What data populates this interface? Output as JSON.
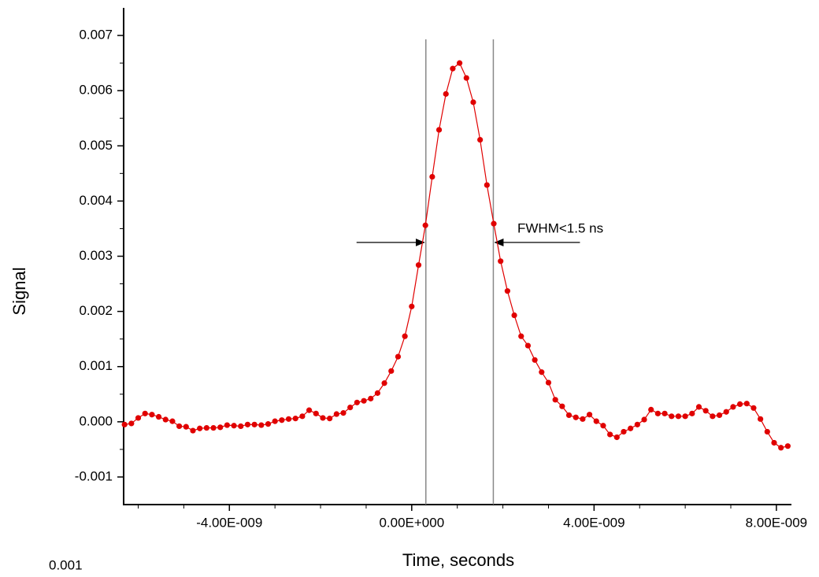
{
  "chart_data": {
    "type": "scatter-line",
    "x_label": "Time, seconds",
    "y_label": "Signal",
    "footnote": "0.001",
    "annotation": "FWHM<1.5 ns",
    "vlines": [
      3.1e-10,
      1.79e-09
    ],
    "xlim": [
      -6.32e-09,
      8.33e-09
    ],
    "ylim": [
      -0.0015,
      0.0075
    ],
    "xticks": [
      {
        "value": -4e-09,
        "label": "-4.00E-009"
      },
      {
        "value": 0,
        "label": "0.00E+000"
      },
      {
        "value": 4e-09,
        "label": "4.00E-009"
      },
      {
        "value": 8e-09,
        "label": "8.00E-009"
      }
    ],
    "xminorticks": [
      -6e-09,
      -5e-09,
      -3e-09,
      -2e-09,
      -1e-09,
      1e-09,
      2e-09,
      3e-09,
      5e-09,
      6e-09,
      7e-09
    ],
    "yticks": [
      -0.001,
      {
        "value": 0,
        "label": "0.000"
      },
      0.001,
      0.002,
      0.003,
      0.004,
      0.005,
      0.006,
      0.007
    ],
    "yminorticks": [
      -0.0005,
      0.0005,
      0.0015,
      0.0025,
      0.0035,
      0.0045,
      0.0055,
      0.0065
    ],
    "series": [
      {
        "color": "#e00000",
        "x": [
          -6.3e-09,
          -6.15e-09,
          -6e-09,
          -5.85e-09,
          -5.7e-09,
          -5.55e-09,
          -5.4e-09,
          -5.25e-09,
          -5.1e-09,
          -4.95e-09,
          -4.8e-09,
          -4.65e-09,
          -4.5e-09,
          -4.35e-09,
          -4.2e-09,
          -4.05e-09,
          -3.9e-09,
          -3.75e-09,
          -3.6e-09,
          -3.45e-09,
          -3.3e-09,
          -3.15e-09,
          -3e-09,
          -2.85e-09,
          -2.7e-09,
          -2.55e-09,
          -2.4e-09,
          -2.25e-09,
          -2.1e-09,
          -1.95e-09,
          -1.8e-09,
          -1.65e-09,
          -1.5e-09,
          -1.35e-09,
          -1.2e-09,
          -1.05e-09,
          -9e-10,
          -7.5e-10,
          -6e-10,
          -4.5e-10,
          -3e-10,
          -1.5e-10,
          0,
          1.5e-10,
          3e-10,
          4.5e-10,
          6e-10,
          7.5e-10,
          9e-10,
          1.05e-09,
          1.2e-09,
          1.35e-09,
          1.5e-09,
          1.65e-09,
          1.8e-09,
          1.95e-09,
          2.1e-09,
          2.25e-09,
          2.4e-09,
          2.55e-09,
          2.7e-09,
          2.85e-09,
          3e-09,
          3.15e-09,
          3.3e-09,
          3.45e-09,
          3.6e-09,
          3.75e-09,
          3.9e-09,
          4.05e-09,
          4.2e-09,
          4.35e-09,
          4.5e-09,
          4.65e-09,
          4.8e-09,
          4.95e-09,
          5.1e-09,
          5.25e-09,
          5.4e-09,
          5.55e-09,
          5.7e-09,
          5.85e-09,
          6e-09,
          6.15e-09,
          6.3e-09,
          6.45e-09,
          6.6e-09,
          6.75e-09,
          6.9e-09,
          7.05e-09,
          7.2e-09,
          7.35e-09,
          7.5e-09,
          7.65e-09,
          7.8e-09,
          7.95e-09,
          8.1e-09,
          8.25e-09
        ],
        "values": [
          -5e-05,
          -3e-05,
          7e-05,
          0.00015,
          0.00013,
          9e-05,
          4e-05,
          1e-05,
          -8e-05,
          -9e-05,
          -0.00016,
          -0.00012,
          -0.00011,
          -0.00011,
          -0.0001,
          -6e-05,
          -7e-05,
          -8e-05,
          -5e-05,
          -5e-05,
          -6e-05,
          -4e-05,
          1e-05,
          3e-05,
          5e-05,
          6e-05,
          0.0001,
          0.00021,
          0.00015,
          7e-05,
          6e-05,
          0.00014,
          0.00016,
          0.00026,
          0.00035,
          0.00038,
          0.00042,
          0.00052,
          0.0007,
          0.00092,
          0.00118,
          0.00155,
          0.00209,
          0.00284,
          0.00356,
          0.00444,
          0.00529,
          0.00594,
          0.0064,
          0.0065,
          0.00623,
          0.00579,
          0.00511,
          0.00429,
          0.00359,
          0.00291,
          0.00237,
          0.00193,
          0.00155,
          0.00138,
          0.00112,
          0.0009,
          0.00071,
          0.0004,
          0.00028,
          0.00012,
          8e-05,
          5e-05,
          0.00013,
          1e-05,
          -7e-05,
          -0.00023,
          -0.00028,
          -0.00018,
          -0.00012,
          -5e-05,
          4e-05,
          0.00022,
          0.00015,
          0.00015,
          0.0001,
          0.0001,
          0.0001,
          0.00015,
          0.00027,
          0.0002,
          0.0001,
          0.00012,
          0.00018,
          0.00027,
          0.00032,
          0.00033,
          0.00025,
          5e-05,
          -0.00018,
          -0.00038,
          -0.00047,
          -0.00044
        ]
      }
    ]
  }
}
